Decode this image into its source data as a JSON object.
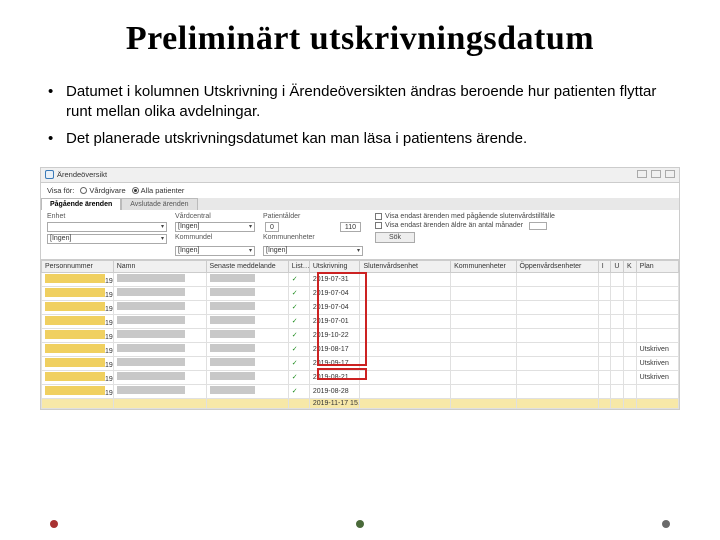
{
  "title": "Preliminärt utskrivningsdatum",
  "bullets": [
    "Datumet i kolumnen Utskrivning i Ärendeöversikten ändras beroende hur patienten flyttar runt mellan olika avdelningar.",
    "Det planerade utskrivningsdatumet kan man läsa i patientens ärende."
  ],
  "app_header": {
    "title": "Ärendeöversikt"
  },
  "view": {
    "label": "Visa för:",
    "opt1": "Vårdgivare",
    "opt2": "Alla patienter"
  },
  "tabs": {
    "t1": "Pågående ärenden",
    "t2": "Avslutade ärenden"
  },
  "filters": {
    "enhet_label": "Enhet",
    "enhet_val": "",
    "vardcentral_label": "Vårdcentral",
    "vardcentral_val": "[Ingen]",
    "patientalder_label": "Patientålder",
    "age_from": "0",
    "age_to": "110",
    "kommun_label": "[Ingen]",
    "kommundel_label": "Kommundel",
    "kommundel_val": "[Ingen]",
    "kommun2_label": "Kommunenheter",
    "kommun2_val": "[Ingen]",
    "chk1": "Visa endast ärenden med pågående slutenvårdstillfälle",
    "chk2": "Visa endast ärenden äldre än antal månader",
    "sok": "Sök"
  },
  "columns": {
    "pnr": "Personnummer",
    "namn": "Namn",
    "sen": "Senaste meddelande",
    "list": "List…",
    "utskr": "Utskrivning",
    "skut": "Slutenvårdsenhet",
    "komm": "Kommunenheter",
    "opp": "Öppenvårdsenheter",
    "i": "I",
    "u": "U",
    "k": "K",
    "plan": "Plan"
  },
  "rows": [
    {
      "pn": "19",
      "date": "2019-07-31",
      "plan": ""
    },
    {
      "pn": "19",
      "date": "2019-07-04",
      "plan": ""
    },
    {
      "pn": "19",
      "date": "2019-07-04",
      "plan": ""
    },
    {
      "pn": "19",
      "date": "2019-07-01",
      "plan": ""
    },
    {
      "pn": "19",
      "date": "2019-10-22",
      "plan": ""
    },
    {
      "pn": "19",
      "date": "2019-08-17",
      "plan": "Utskriven"
    },
    {
      "pn": "19",
      "date": "2019-09-17",
      "plan": "Utskriven"
    },
    {
      "pn": "19",
      "date": "2019-08-21",
      "plan": "Utskriven"
    },
    {
      "pn": "19",
      "date": "2019-08-28",
      "plan": ""
    }
  ],
  "sel_row": {
    "pn": "",
    "date": "2019-11-17 15…",
    "plan": ""
  },
  "dot_colors": {
    "left": "#a83232",
    "center": "#4a6a3a",
    "right": "#6a6a6a"
  }
}
